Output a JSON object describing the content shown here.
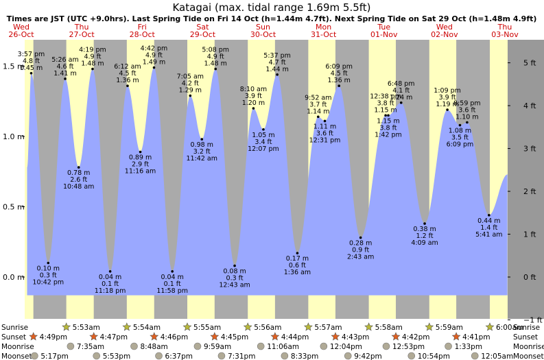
{
  "chart_data": {
    "type": "area",
    "title": "Katagai (max. tidal range 1.69m 5.5ft)",
    "subtitle": "Times are JST (UTC +9.0hrs). Last Spring Tide on Fri 14 Oct (h=1.44m 4.7ft). Next Spring Tide on Sat 29 Oct (h=1.48m 4.9ft)",
    "days": [
      {
        "name": "Wed",
        "date": "26-Oct"
      },
      {
        "name": "Thu",
        "date": "27-Oct"
      },
      {
        "name": "Fri",
        "date": "28-Oct"
      },
      {
        "name": "Sat",
        "date": "29-Oct"
      },
      {
        "name": "Sun",
        "date": "30-Oct"
      },
      {
        "name": "Mon",
        "date": "31-Oct"
      },
      {
        "name": "Tue",
        "date": "01-Nov"
      },
      {
        "name": "Wed",
        "date": "02-Nov"
      },
      {
        "name": "Thu",
        "date": "03-Nov"
      }
    ],
    "y_left": {
      "unit": "m",
      "ylim": [
        -0.2,
        1.7
      ],
      "ticks": [
        "1.5 m",
        "1.0 m",
        "0.5 m",
        "0.0 m"
      ],
      "tick_values": [
        1.5,
        1.0,
        0.5,
        0.0
      ]
    },
    "y_right": {
      "unit": "ft",
      "ticks": [
        "5 ft",
        "4 ft",
        "3 ft",
        "2 ft",
        "1 ft",
        "0 ft",
        "−1 ft"
      ],
      "tick_values": [
        5,
        4,
        3,
        2,
        1,
        0,
        -1
      ]
    },
    "extremes": [
      {
        "day": 0,
        "time": "3:57 pm",
        "ft": "4.8 ft",
        "m": "1.45 m",
        "h": 1.45,
        "type": "high"
      },
      {
        "day": 0,
        "time": "10:42 pm",
        "ft": "0.3 ft",
        "m": "0.10 m",
        "h": 0.1,
        "type": "low"
      },
      {
        "day": 1,
        "time": "5:26 am",
        "ft": "4.6 ft",
        "m": "1.41 m",
        "h": 1.41,
        "type": "high"
      },
      {
        "day": 1,
        "time": "10:48 am",
        "ft": "2.6 ft",
        "m": "0.78 m",
        "h": 0.78,
        "type": "low"
      },
      {
        "day": 1,
        "time": "4:19 pm",
        "ft": "4.9 ft",
        "m": "1.48 m",
        "h": 1.48,
        "type": "high"
      },
      {
        "day": 1,
        "time": "11:18 pm",
        "ft": "0.1 ft",
        "m": "0.04 m",
        "h": 0.04,
        "type": "low"
      },
      {
        "day": 2,
        "time": "6:12 am",
        "ft": "4.5 ft",
        "m": "1.36 m",
        "h": 1.36,
        "type": "high"
      },
      {
        "day": 2,
        "time": "11:16 am",
        "ft": "2.9 ft",
        "m": "0.89 m",
        "h": 0.89,
        "type": "low"
      },
      {
        "day": 2,
        "time": "4:42 pm",
        "ft": "4.9 ft",
        "m": "1.49 m",
        "h": 1.49,
        "type": "high"
      },
      {
        "day": 2,
        "time": "11:58 pm",
        "ft": "0.1 ft",
        "m": "0.04 m",
        "h": 0.04,
        "type": "low"
      },
      {
        "day": 3,
        "time": "7:05 am",
        "ft": "4.2 ft",
        "m": "1.29 m",
        "h": 1.29,
        "type": "high"
      },
      {
        "day": 3,
        "time": "11:42 am",
        "ft": "3.2 ft",
        "m": "0.98 m",
        "h": 0.98,
        "type": "low"
      },
      {
        "day": 3,
        "time": "5:08 pm",
        "ft": "4.9 ft",
        "m": "1.48 m",
        "h": 1.48,
        "type": "high"
      },
      {
        "day": 4,
        "time": "12:43 am",
        "ft": "0.3 ft",
        "m": "0.08 m",
        "h": 0.08,
        "type": "low"
      },
      {
        "day": 4,
        "time": "8:10 am",
        "ft": "3.9 ft",
        "m": "1.20 m",
        "h": 1.2,
        "type": "high"
      },
      {
        "day": 4,
        "time": "12:07 pm",
        "ft": "3.4 ft",
        "m": "1.05 m",
        "h": 1.05,
        "type": "low"
      },
      {
        "day": 4,
        "time": "5:37 pm",
        "ft": "4.7 ft",
        "m": "1.44 m",
        "h": 1.44,
        "type": "high"
      },
      {
        "day": 5,
        "time": "1:36 am",
        "ft": "0.6 ft",
        "m": "0.17 m",
        "h": 0.17,
        "type": "low"
      },
      {
        "day": 5,
        "time": "9:52 am",
        "ft": "3.7 ft",
        "m": "1.14 m",
        "h": 1.14,
        "type": "high"
      },
      {
        "day": 5,
        "time": "12:31 pm",
        "ft": "3.6 ft",
        "m": "1.11 m",
        "h": 1.11,
        "type": "low"
      },
      {
        "day": 5,
        "time": "6:09 pm",
        "ft": "4.5 ft",
        "m": "1.36 m",
        "h": 1.36,
        "type": "high"
      },
      {
        "day": 6,
        "time": "2:43 am",
        "ft": "0.9 ft",
        "m": "0.28 m",
        "h": 0.28,
        "type": "low"
      },
      {
        "day": 6,
        "time": "12:38 pm",
        "ft": "3.8 ft",
        "m": "1.15 m",
        "h": 1.15,
        "type": "high"
      },
      {
        "day": 6,
        "time": "1:42 pm",
        "ft": "3.8 ft",
        "m": "1.15 m",
        "h": 1.15,
        "type": "low"
      },
      {
        "day": 6,
        "time": "6:48 pm",
        "ft": "4.1 ft",
        "m": "1.24 m",
        "h": 1.24,
        "type": "high"
      },
      {
        "day": 7,
        "time": "4:09 am",
        "ft": "1.2 ft",
        "m": "0.38 m",
        "h": 0.38,
        "type": "low"
      },
      {
        "day": 7,
        "time": "1:09 pm",
        "ft": "3.9 ft",
        "m": "1.19 m",
        "h": 1.19,
        "type": "high"
      },
      {
        "day": 7,
        "time": "6:09 pm",
        "ft": "3.5 ft",
        "m": "1.08 m",
        "h": 1.08,
        "type": "low"
      },
      {
        "day": 7,
        "time": "8:59 pm",
        "ft": "3.6 ft",
        "m": "1.10 m",
        "h": 1.1,
        "type": "high"
      },
      {
        "day": 8,
        "time": "5:41 am",
        "ft": "1.4 ft",
        "m": "0.44 m",
        "h": 0.44,
        "type": "low"
      }
    ],
    "series_start": {
      "day": 0,
      "time": "2:20 pm",
      "h": 0.78
    },
    "series_end": {
      "day": 8,
      "time": "1:00 pm",
      "h": 0.73
    },
    "sunrise": [
      "5:53am",
      "5:54am",
      "5:55am",
      "5:56am",
      "5:57am",
      "5:58am",
      "5:59am",
      "6:00am"
    ],
    "sunset": [
      "4:49pm",
      "4:47pm",
      "4:46pm",
      "4:45pm",
      "4:44pm",
      "4:43pm",
      "4:42pm",
      "4:41pm"
    ],
    "moonrise": [
      "7:35am",
      "8:48am",
      "9:59am",
      "11:06am",
      "12:04pm",
      "12:53pm",
      "1:33pm"
    ],
    "moonset": [
      "5:17pm",
      "5:53pm",
      "6:37pm",
      "7:31pm",
      "8:33pm",
      "9:42pm",
      "10:54pm",
      "12:05am"
    ],
    "row_labels": {
      "sunrise": "Sunrise",
      "sunset": "Sunset",
      "moonrise": "Moonrise",
      "moonset": "Moonset"
    },
    "colors": {
      "water": "#9aa8ff",
      "day": "#ffffc0",
      "night": "#aaaaaa",
      "day_label": "#cc0000",
      "sun_icon": "#b8b83a",
      "sunset_icon": "#e06020",
      "moon_icon": "#b0aa96"
    }
  }
}
